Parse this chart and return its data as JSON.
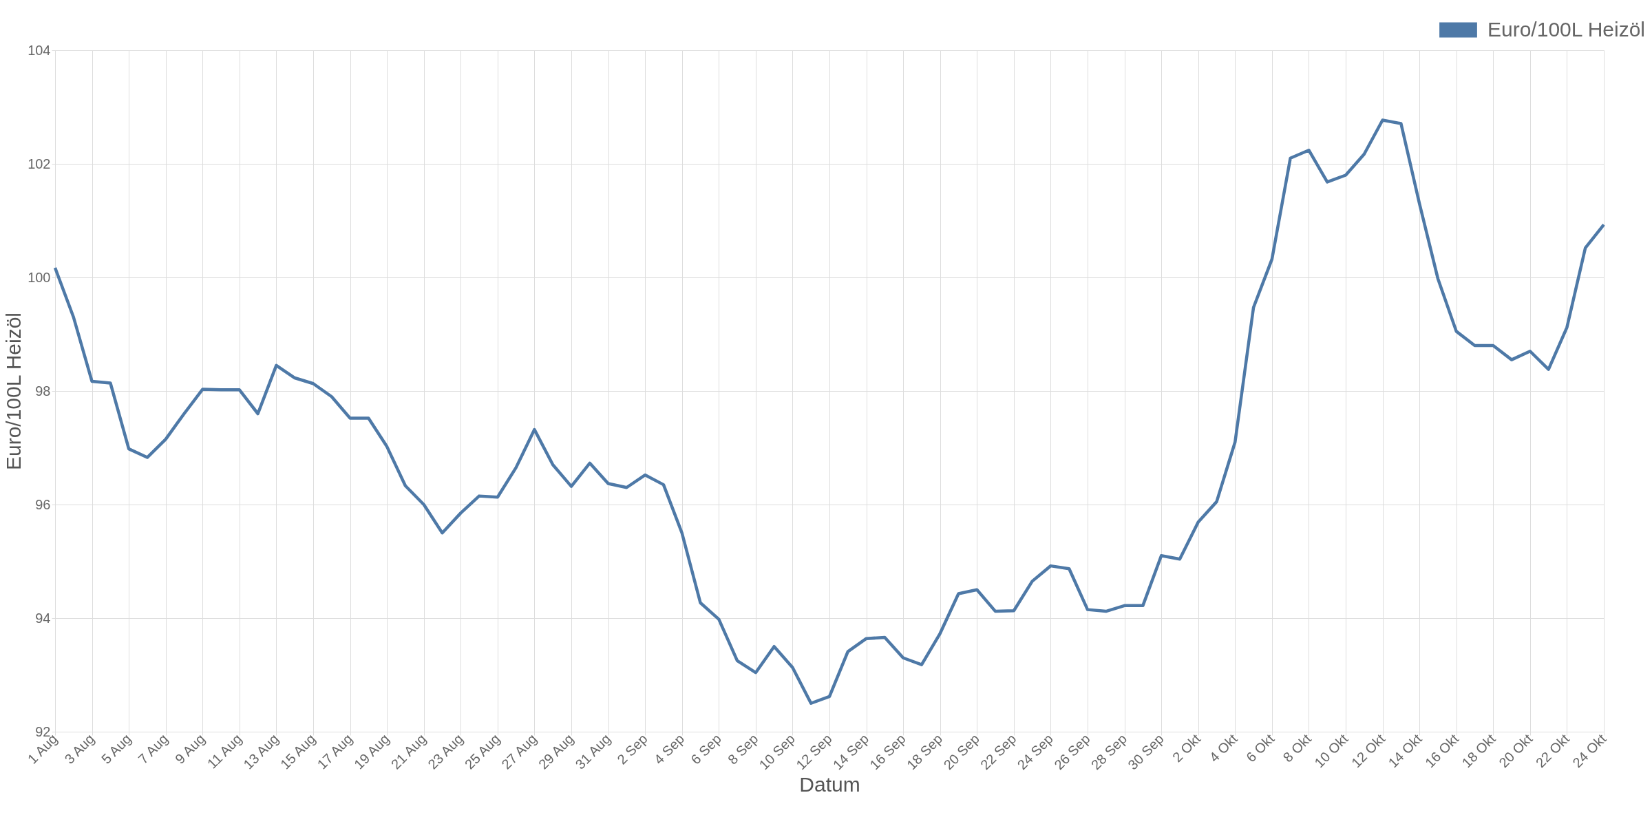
{
  "chart_data": {
    "type": "line",
    "xlabel": "Datum",
    "ylabel": "Euro/100L Heizöl",
    "categories": [
      "1 Aug",
      null,
      "3 Aug",
      null,
      "5 Aug",
      null,
      "7 Aug",
      null,
      "9 Aug",
      null,
      "11 Aug",
      null,
      "13 Aug",
      null,
      "15 Aug",
      null,
      "17 Aug",
      null,
      "19 Aug",
      null,
      "21 Aug",
      null,
      "23 Aug",
      null,
      "25 Aug",
      null,
      "27 Aug",
      null,
      "29 Aug",
      null,
      "31 Aug",
      null,
      "2 Sep",
      null,
      "4 Sep",
      null,
      "6 Sep",
      null,
      "8 Sep",
      null,
      "10 Sep",
      null,
      "12 Sep",
      null,
      "14 Sep",
      null,
      "16 Sep",
      null,
      "18 Sep",
      null,
      "20 Sep",
      null,
      "22 Sep",
      null,
      "24 Sep",
      null,
      "26 Sep",
      null,
      "28 Sep",
      null,
      "30 Sep",
      null,
      "2 Okt",
      null,
      "4 Okt",
      null,
      "6 Okt",
      null,
      "8 Okt",
      null,
      "10 Okt",
      null,
      "12 Okt",
      null,
      "14 Okt",
      null,
      "16 Okt",
      null,
      "18 Okt",
      null,
      "20 Okt",
      null,
      "22 Okt",
      null,
      "24 Okt"
    ],
    "series": [
      {
        "name": "Euro/100L Heizöl",
        "color": "#4e79a7",
        "values": [
          100.17,
          99.3,
          98.17,
          98.14,
          96.98,
          96.83,
          97.15,
          97.6,
          98.03,
          98.02,
          98.02,
          97.6,
          98.45,
          98.23,
          98.13,
          97.9,
          97.52,
          97.52,
          97.02,
          96.33,
          96.0,
          95.5,
          95.85,
          96.15,
          96.13,
          96.65,
          97.32,
          96.7,
          96.32,
          96.73,
          96.37,
          96.3,
          96.52,
          96.35,
          95.5,
          94.27,
          93.98,
          93.25,
          93.04,
          93.5,
          93.13,
          92.5,
          92.62,
          93.41,
          93.64,
          93.66,
          93.3,
          93.18,
          93.73,
          94.43,
          94.5,
          94.12,
          94.13,
          94.65,
          94.92,
          94.87,
          94.15,
          94.12,
          94.22,
          94.22,
          95.1,
          95.04,
          95.69,
          96.05,
          97.1,
          99.47,
          100.32,
          102.1,
          102.24,
          101.68,
          101.8,
          102.17,
          102.77,
          102.71,
          101.3,
          99.98,
          99.05,
          98.8,
          98.8,
          98.55,
          98.7,
          98.38,
          99.12,
          100.52,
          100.93
        ]
      }
    ],
    "ylim": [
      92,
      104
    ],
    "yticks": [
      92,
      94,
      96,
      98,
      100,
      102,
      104
    ],
    "grid": true,
    "legend": "top right",
    "marker": "none",
    "line_style": "solid"
  }
}
